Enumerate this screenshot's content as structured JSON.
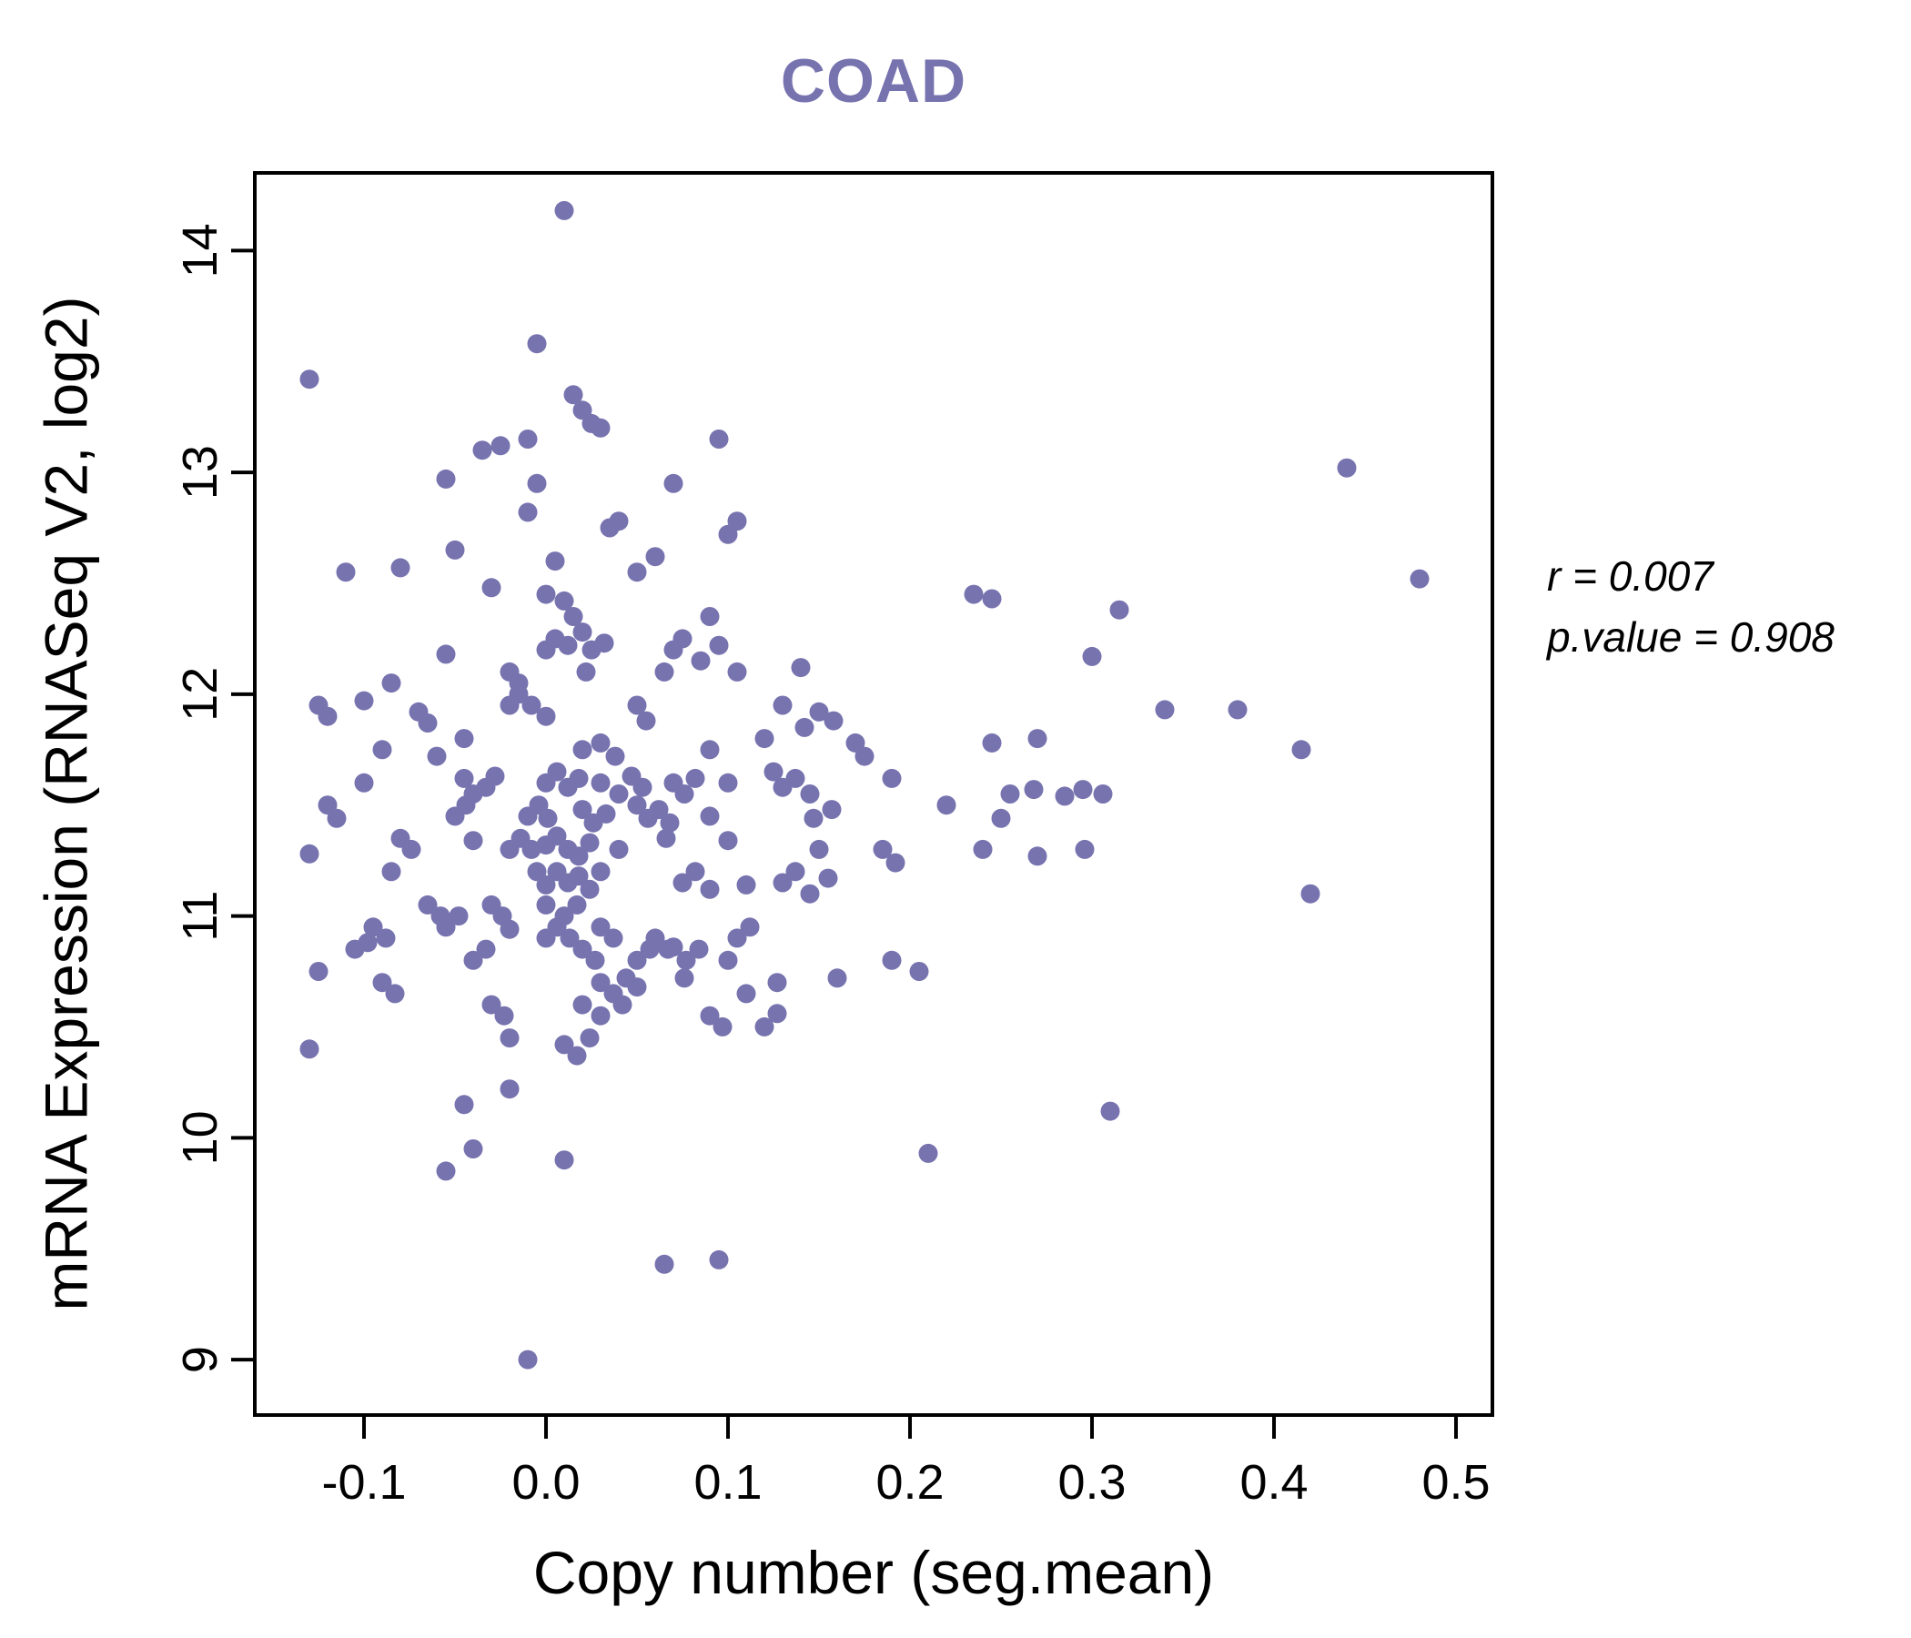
{
  "colors": {
    "point": "#7673AF",
    "title": "#7673AF",
    "axis": "#000000",
    "background": "#FFFFFF"
  },
  "chart_data": {
    "type": "scatter",
    "title": "COAD",
    "xlabel": "Copy number (seg.mean)",
    "ylabel": "mRNA Expression (RNASeq V2, log2)",
    "xlim": [
      -0.16,
      0.52
    ],
    "ylim": [
      8.75,
      14.35
    ],
    "xticks": [
      -0.1,
      0.0,
      0.1,
      0.2,
      0.3,
      0.4,
      0.5
    ],
    "xtick_labels": [
      "-0.1",
      "0.0",
      "0.1",
      "0.2",
      "0.3",
      "0.4",
      "0.5"
    ],
    "yticks": [
      9,
      10,
      11,
      12,
      13,
      14
    ],
    "ytick_labels": [
      "9",
      "10",
      "11",
      "12",
      "13",
      "14"
    ],
    "grid": false,
    "legend": null,
    "annotations": [
      "r = 0.007",
      "p.value = 0.908"
    ],
    "points": [
      [
        -0.13,
        13.42
      ],
      [
        0.01,
        14.18
      ],
      [
        -0.005,
        13.58
      ],
      [
        0.015,
        13.35
      ],
      [
        0.02,
        13.28
      ],
      [
        0.025,
        13.22
      ],
      [
        0.03,
        13.2
      ],
      [
        -0.035,
        13.1
      ],
      [
        -0.025,
        13.12
      ],
      [
        -0.01,
        13.15
      ],
      [
        0.095,
        13.15
      ],
      [
        -0.005,
        12.95
      ],
      [
        -0.055,
        12.97
      ],
      [
        0.07,
        12.95
      ],
      [
        -0.01,
        12.82
      ],
      [
        0.035,
        12.75
      ],
      [
        0.04,
        12.78
      ],
      [
        0.1,
        12.72
      ],
      [
        0.105,
        12.78
      ],
      [
        -0.05,
        12.65
      ],
      [
        0.005,
        12.6
      ],
      [
        0.05,
        12.55
      ],
      [
        0.06,
        12.62
      ],
      [
        -0.11,
        12.55
      ],
      [
        -0.08,
        12.57
      ],
      [
        -0.03,
        12.48
      ],
      [
        0.0,
        12.45
      ],
      [
        0.01,
        12.42
      ],
      [
        0.015,
        12.35
      ],
      [
        0.09,
        12.35
      ],
      [
        0.235,
        12.45
      ],
      [
        0.245,
        12.43
      ],
      [
        0.315,
        12.38
      ],
      [
        0.44,
        13.02
      ],
      [
        0.48,
        12.52
      ],
      [
        -0.055,
        12.18
      ],
      [
        0.0,
        12.2
      ],
      [
        0.005,
        12.25
      ],
      [
        0.012,
        12.22
      ],
      [
        0.02,
        12.28
      ],
      [
        0.025,
        12.2
      ],
      [
        0.032,
        12.23
      ],
      [
        0.07,
        12.2
      ],
      [
        0.075,
        12.25
      ],
      [
        0.095,
        12.22
      ],
      [
        0.3,
        12.17
      ],
      [
        -0.085,
        12.05
      ],
      [
        -0.02,
        12.1
      ],
      [
        -0.015,
        12.05
      ],
      [
        0.022,
        12.1
      ],
      [
        0.065,
        12.1
      ],
      [
        0.085,
        12.15
      ],
      [
        0.105,
        12.1
      ],
      [
        0.14,
        12.12
      ],
      [
        -0.125,
        11.95
      ],
      [
        -0.12,
        11.9
      ],
      [
        -0.1,
        11.97
      ],
      [
        -0.07,
        11.92
      ],
      [
        -0.065,
        11.87
      ],
      [
        -0.02,
        11.95
      ],
      [
        -0.015,
        12.0
      ],
      [
        -0.008,
        11.95
      ],
      [
        0.0,
        11.9
      ],
      [
        0.05,
        11.95
      ],
      [
        0.055,
        11.88
      ],
      [
        0.13,
        11.95
      ],
      [
        0.142,
        11.85
      ],
      [
        0.15,
        11.92
      ],
      [
        0.158,
        11.88
      ],
      [
        0.34,
        11.93
      ],
      [
        0.38,
        11.93
      ],
      [
        -0.09,
        11.75
      ],
      [
        -0.06,
        11.72
      ],
      [
        -0.045,
        11.8
      ],
      [
        0.02,
        11.75
      ],
      [
        0.03,
        11.78
      ],
      [
        0.038,
        11.72
      ],
      [
        0.09,
        11.75
      ],
      [
        0.12,
        11.8
      ],
      [
        0.17,
        11.78
      ],
      [
        0.175,
        11.72
      ],
      [
        0.245,
        11.78
      ],
      [
        0.27,
        11.8
      ],
      [
        0.415,
        11.75
      ],
      [
        -0.1,
        11.6
      ],
      [
        -0.045,
        11.62
      ],
      [
        -0.04,
        11.55
      ],
      [
        -0.033,
        11.58
      ],
      [
        -0.028,
        11.63
      ],
      [
        0.0,
        11.6
      ],
      [
        0.006,
        11.65
      ],
      [
        0.012,
        11.58
      ],
      [
        0.018,
        11.62
      ],
      [
        0.03,
        11.6
      ],
      [
        0.04,
        11.55
      ],
      [
        0.047,
        11.63
      ],
      [
        0.053,
        11.58
      ],
      [
        0.07,
        11.6
      ],
      [
        0.076,
        11.55
      ],
      [
        0.082,
        11.62
      ],
      [
        0.1,
        11.6
      ],
      [
        0.125,
        11.65
      ],
      [
        0.13,
        11.58
      ],
      [
        0.137,
        11.62
      ],
      [
        0.145,
        11.55
      ],
      [
        0.19,
        11.62
      ],
      [
        0.255,
        11.55
      ],
      [
        0.268,
        11.57
      ],
      [
        0.285,
        11.54
      ],
      [
        0.295,
        11.57
      ],
      [
        0.306,
        11.55
      ],
      [
        -0.12,
        11.5
      ],
      [
        -0.115,
        11.44
      ],
      [
        -0.05,
        11.45
      ],
      [
        -0.044,
        11.5
      ],
      [
        -0.01,
        11.45
      ],
      [
        -0.004,
        11.5
      ],
      [
        0.001,
        11.44
      ],
      [
        0.02,
        11.48
      ],
      [
        0.026,
        11.42
      ],
      [
        0.033,
        11.46
      ],
      [
        0.05,
        11.5
      ],
      [
        0.056,
        11.44
      ],
      [
        0.062,
        11.48
      ],
      [
        0.068,
        11.42
      ],
      [
        0.09,
        11.45
      ],
      [
        0.147,
        11.44
      ],
      [
        0.157,
        11.48
      ],
      [
        0.22,
        11.5
      ],
      [
        0.25,
        11.44
      ],
      [
        -0.08,
        11.35
      ],
      [
        -0.074,
        11.3
      ],
      [
        -0.04,
        11.34
      ],
      [
        -0.02,
        11.3
      ],
      [
        -0.014,
        11.35
      ],
      [
        -0.008,
        11.3
      ],
      [
        0.0,
        11.32
      ],
      [
        0.006,
        11.36
      ],
      [
        0.012,
        11.3
      ],
      [
        0.018,
        11.27
      ],
      [
        0.024,
        11.33
      ],
      [
        0.04,
        11.3
      ],
      [
        0.066,
        11.35
      ],
      [
        0.1,
        11.34
      ],
      [
        0.15,
        11.3
      ],
      [
        0.185,
        11.3
      ],
      [
        0.192,
        11.24
      ],
      [
        0.24,
        11.3
      ],
      [
        0.27,
        11.27
      ],
      [
        0.296,
        11.3
      ],
      [
        -0.13,
        11.28
      ],
      [
        -0.085,
        11.2
      ],
      [
        -0.005,
        11.2
      ],
      [
        0.0,
        11.14
      ],
      [
        0.006,
        11.2
      ],
      [
        0.012,
        11.15
      ],
      [
        0.018,
        11.18
      ],
      [
        0.024,
        11.12
      ],
      [
        0.03,
        11.2
      ],
      [
        0.075,
        11.15
      ],
      [
        0.082,
        11.2
      ],
      [
        0.09,
        11.12
      ],
      [
        0.13,
        11.15
      ],
      [
        0.137,
        11.2
      ],
      [
        0.155,
        11.17
      ],
      [
        0.11,
        11.14
      ],
      [
        -0.065,
        11.05
      ],
      [
        -0.058,
        11.0
      ],
      [
        -0.03,
        11.05
      ],
      [
        -0.024,
        11.0
      ],
      [
        0.0,
        11.05
      ],
      [
        0.01,
        11.0
      ],
      [
        0.017,
        11.05
      ],
      [
        0.145,
        11.1
      ],
      [
        0.42,
        11.1
      ],
      [
        -0.095,
        10.95
      ],
      [
        -0.088,
        10.9
      ],
      [
        -0.055,
        10.95
      ],
      [
        -0.048,
        11.0
      ],
      [
        -0.02,
        10.94
      ],
      [
        0.0,
        10.9
      ],
      [
        0.006,
        10.95
      ],
      [
        0.013,
        10.9
      ],
      [
        0.03,
        10.95
      ],
      [
        0.037,
        10.9
      ],
      [
        0.06,
        10.9
      ],
      [
        0.067,
        10.85
      ],
      [
        0.105,
        10.9
      ],
      [
        0.112,
        10.95
      ],
      [
        -0.105,
        10.85
      ],
      [
        -0.098,
        10.88
      ],
      [
        -0.04,
        10.8
      ],
      [
        -0.033,
        10.85
      ],
      [
        0.02,
        10.85
      ],
      [
        0.027,
        10.8
      ],
      [
        0.05,
        10.8
      ],
      [
        0.057,
        10.85
      ],
      [
        0.07,
        10.86
      ],
      [
        0.077,
        10.8
      ],
      [
        0.084,
        10.85
      ],
      [
        0.1,
        10.8
      ],
      [
        0.19,
        10.8
      ],
      [
        -0.125,
        10.75
      ],
      [
        -0.09,
        10.7
      ],
      [
        -0.083,
        10.65
      ],
      [
        0.03,
        10.7
      ],
      [
        0.037,
        10.65
      ],
      [
        0.044,
        10.72
      ],
      [
        0.05,
        10.68
      ],
      [
        0.076,
        10.72
      ],
      [
        0.11,
        10.65
      ],
      [
        0.127,
        10.7
      ],
      [
        0.16,
        10.72
      ],
      [
        0.205,
        10.75
      ],
      [
        -0.03,
        10.6
      ],
      [
        -0.023,
        10.55
      ],
      [
        0.02,
        10.6
      ],
      [
        0.03,
        10.55
      ],
      [
        0.042,
        10.6
      ],
      [
        0.09,
        10.55
      ],
      [
        0.097,
        10.5
      ],
      [
        0.12,
        10.5
      ],
      [
        0.127,
        10.56
      ],
      [
        -0.13,
        10.4
      ],
      [
        -0.02,
        10.45
      ],
      [
        0.01,
        10.42
      ],
      [
        0.017,
        10.37
      ],
      [
        0.024,
        10.45
      ],
      [
        -0.045,
        10.15
      ],
      [
        -0.02,
        10.22
      ],
      [
        -0.04,
        9.95
      ],
      [
        0.01,
        9.9
      ],
      [
        -0.055,
        9.85
      ],
      [
        0.21,
        9.93
      ],
      [
        0.31,
        10.12
      ],
      [
        0.065,
        9.43
      ],
      [
        0.095,
        9.45
      ],
      [
        -0.01,
        9.0
      ]
    ]
  }
}
